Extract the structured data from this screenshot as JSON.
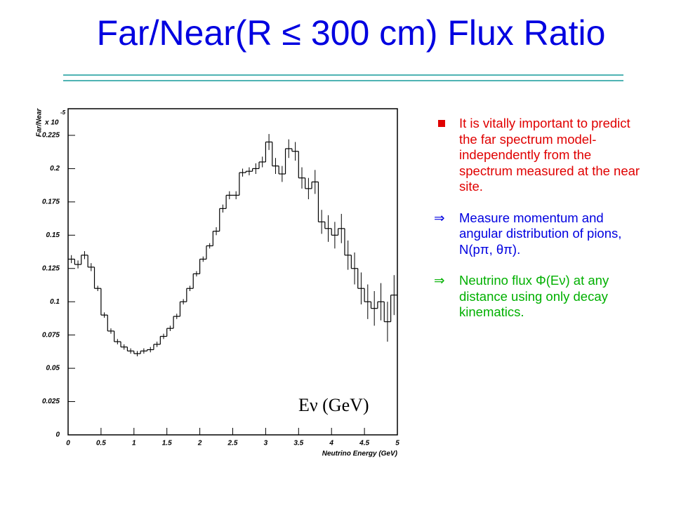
{
  "title": "Far/Near(R ≤ 300 cm) Flux Ratio",
  "chart_data": {
    "type": "histogram",
    "y_label": "Far/Near",
    "y_multiplier": "x 10",
    "y_multiplier_exp": "-5",
    "x_label": "Neutrino Energy (GeV)",
    "annotation": "Eν (GeV)",
    "bins": [
      0,
      0.1,
      0.2,
      0.3,
      0.4,
      0.5,
      0.6,
      0.7,
      0.8,
      0.9,
      1,
      1.1,
      1.2,
      1.3,
      1.4,
      1.5,
      1.6,
      1.7,
      1.8,
      1.9,
      2,
      2.1,
      2.2,
      2.3,
      2.4,
      2.5,
      2.6,
      2.7,
      2.8,
      2.9,
      3,
      3.1,
      3.2,
      3.3,
      3.4,
      3.5,
      3.6,
      3.7,
      3.8,
      3.9,
      4,
      4.1,
      4.2,
      4.3,
      4.4,
      4.5,
      4.6,
      4.7,
      4.8,
      4.9,
      5
    ],
    "values": [
      0.132,
      0.128,
      0.135,
      0.126,
      0.11,
      0.09,
      0.078,
      0.07,
      0.066,
      0.063,
      0.061,
      0.063,
      0.064,
      0.068,
      0.074,
      0.08,
      0.089,
      0.1,
      0.11,
      0.121,
      0.132,
      0.142,
      0.153,
      0.17,
      0.18,
      0.18,
      0.197,
      0.198,
      0.2,
      0.205,
      0.22,
      0.202,
      0.196,
      0.215,
      0.213,
      0.193,
      0.185,
      0.19,
      0.16,
      0.155,
      0.15,
      0.155,
      0.135,
      0.125,
      0.11,
      0.1,
      0.095,
      0.1,
      0.085,
      0.105
    ],
    "errors": [
      0.003,
      0.003,
      0.003,
      0.003,
      0.002,
      0.002,
      0.002,
      0.002,
      0.002,
      0.002,
      0.002,
      0.002,
      0.002,
      0.002,
      0.002,
      0.002,
      0.002,
      0.002,
      0.002,
      0.002,
      0.002,
      0.002,
      0.003,
      0.003,
      0.003,
      0.003,
      0.003,
      0.003,
      0.004,
      0.004,
      0.006,
      0.006,
      0.006,
      0.007,
      0.007,
      0.008,
      0.008,
      0.009,
      0.009,
      0.01,
      0.01,
      0.011,
      0.011,
      0.012,
      0.012,
      0.013,
      0.013,
      0.014,
      0.015,
      0.015
    ],
    "color": "#000000",
    "xlim": [
      0,
      5
    ],
    "xticks": [
      0,
      0.5,
      1,
      1.5,
      2,
      2.5,
      3,
      3.5,
      4,
      4.5,
      5
    ],
    "ylim": [
      0,
      0.245
    ],
    "yticks": [
      0,
      0.025,
      0.05,
      0.075,
      0.1,
      0.125,
      0.15,
      0.175,
      0.2,
      0.225
    ]
  },
  "bullets": [
    {
      "marker": "",
      "color": "#e00000",
      "text": "It is vitally important to predict the far spectrum model-independently from the spectrum measured at the near site."
    },
    {
      "marker": "⇒",
      "color": "#0000e0",
      "text": "Measure momentum and angular distribution of pions, N(pπ, θπ)."
    },
    {
      "marker": "⇒",
      "color": "#00b000",
      "text": "Neutrino flux Φ(Eν) at any distance using only decay kinematics."
    }
  ]
}
